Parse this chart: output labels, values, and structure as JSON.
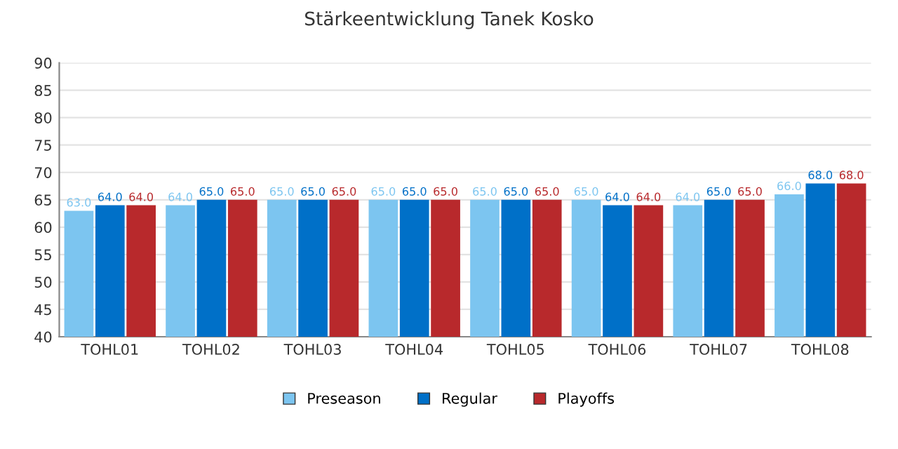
{
  "chart_data": {
    "type": "bar",
    "title": "Stärkeentwicklung Tanek Kosko",
    "categories": [
      "TOHL01",
      "TOHL02",
      "TOHL03",
      "TOHL04",
      "TOHL05",
      "TOHL06",
      "TOHL07",
      "TOHL08"
    ],
    "series": [
      {
        "name": "Preseason",
        "color": "#7cc5f0",
        "values": [
          63,
          64,
          65,
          65,
          65,
          65,
          64,
          66
        ],
        "value_labels": [
          "63.0",
          "64.0",
          "65.0",
          "65.0",
          "65.0",
          "65.0",
          "64.0",
          "66.0"
        ]
      },
      {
        "name": "Regular",
        "color": "#0070c8",
        "values": [
          64,
          65,
          65,
          65,
          65,
          64,
          65,
          68
        ],
        "value_labels": [
          "64.0",
          "65.0",
          "65.0",
          "65.0",
          "65.0",
          "64.0",
          "65.0",
          "68.0"
        ]
      },
      {
        "name": "Playoffs",
        "color": "#b8292c",
        "values": [
          64,
          65,
          65,
          65,
          65,
          64,
          65,
          68
        ],
        "value_labels": [
          "64.0",
          "65.0",
          "65.0",
          "65.0",
          "65.0",
          "64.0",
          "65.0",
          "68.0"
        ]
      }
    ],
    "ylim": [
      40,
      90
    ],
    "yticks": [
      40,
      45,
      50,
      55,
      60,
      65,
      70,
      75,
      80,
      85,
      90
    ],
    "grid": "y",
    "legend": "bottom"
  }
}
